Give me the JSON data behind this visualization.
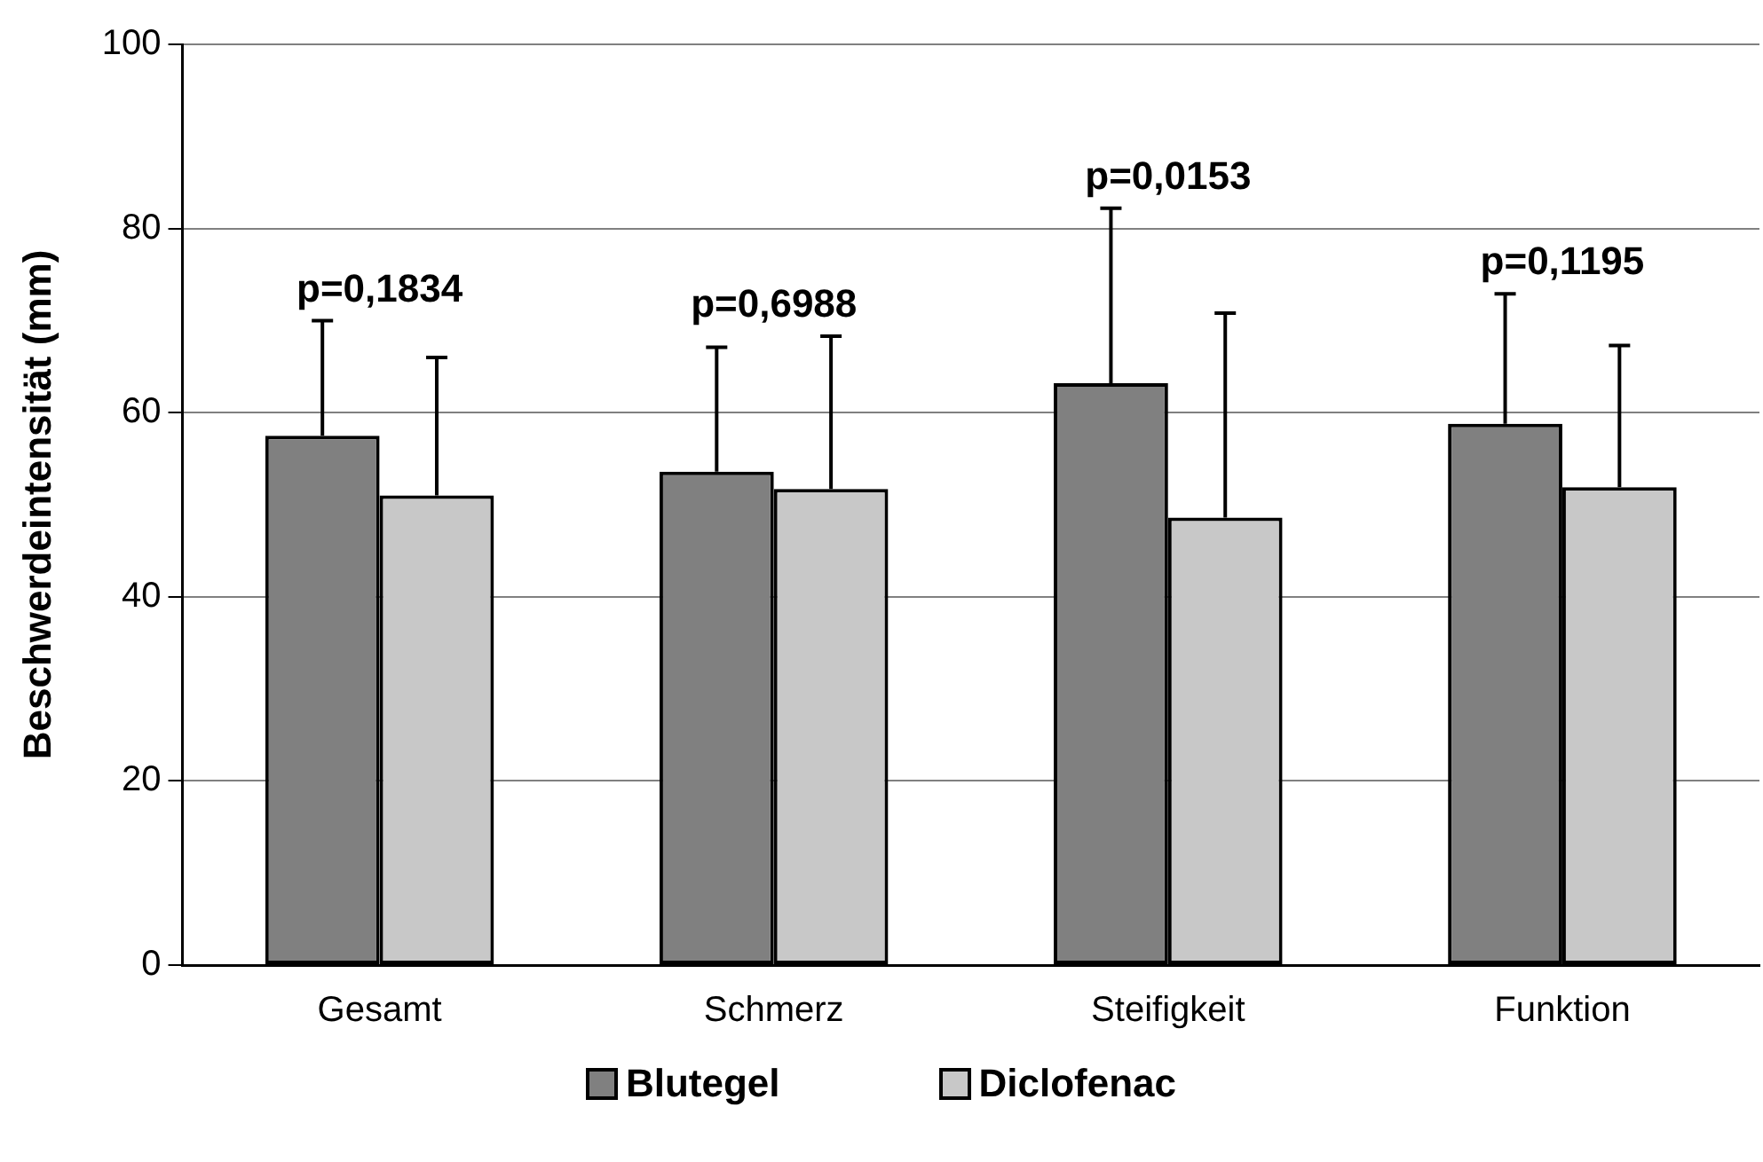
{
  "chart_data": {
    "type": "bar",
    "ylabel": "Beschwerdeintensität (mm)",
    "categories": [
      "Gesamt",
      "Schmerz",
      "Steifigkeit",
      "Funktion"
    ],
    "series": [
      {
        "name": "Blutegel",
        "color": "#808080",
        "values": [
          57.5,
          53.6,
          63.2,
          58.8
        ],
        "errors": [
          [
            57.5,
            70.0
          ],
          [
            53.6,
            67.1
          ],
          [
            63.2,
            82.2
          ],
          [
            58.8,
            72.9
          ]
        ]
      },
      {
        "name": "Diclofenac",
        "color": "#c8c8c8",
        "values": [
          51.0,
          51.7,
          48.6,
          51.9
        ],
        "errors": [
          [
            51.0,
            66.0
          ],
          [
            51.7,
            68.3
          ],
          [
            48.6,
            70.8
          ],
          [
            51.9,
            67.3
          ]
        ]
      }
    ],
    "ylim": [
      0,
      100
    ],
    "yticks": [
      0,
      20,
      40,
      60,
      80,
      100
    ],
    "grid": "y",
    "legend": "bottom",
    "annotations": [
      "p=0,1834",
      "p=0,6988",
      "p=0,0153",
      "p=0,1195"
    ]
  }
}
